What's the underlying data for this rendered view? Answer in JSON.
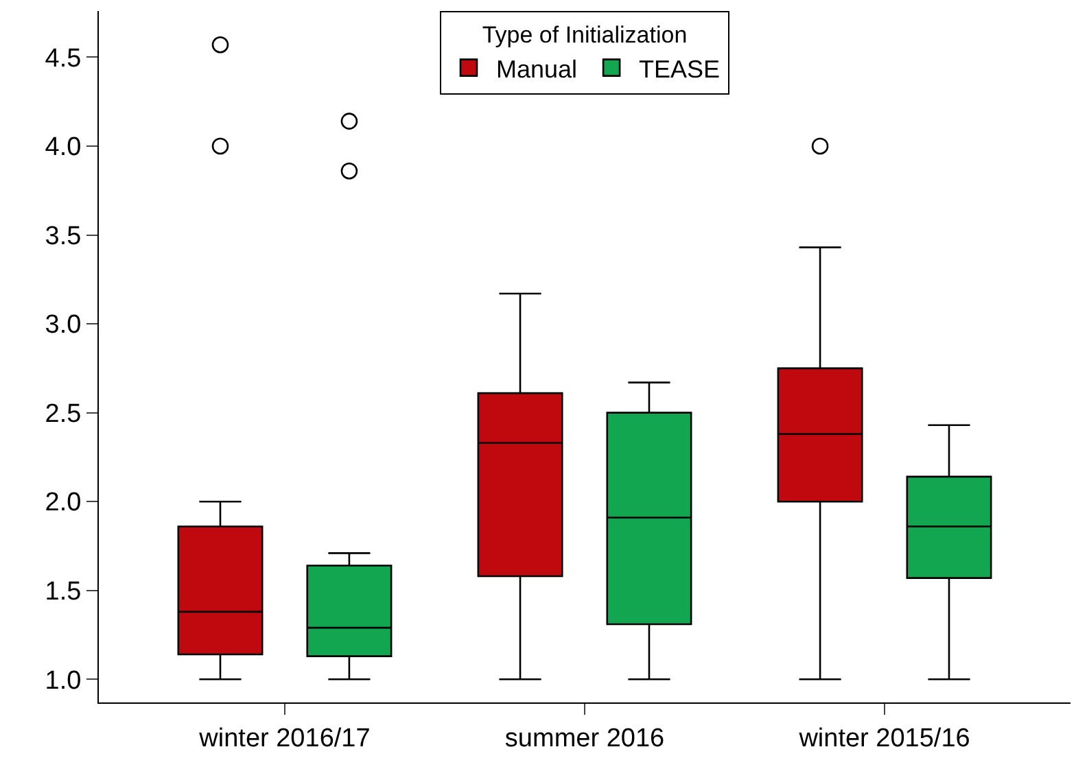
{
  "chart_data": {
    "type": "box",
    "categories": [
      "winter 2016/17",
      "summer 2016",
      "winter 2015/16"
    ],
    "series": [
      {
        "name": "Manual",
        "color": "#c0090f",
        "boxes": [
          {
            "low": 1.0,
            "q1": 1.14,
            "median": 1.38,
            "q3": 1.86,
            "high": 2.0,
            "outliers": [
              4.0,
              4.57
            ]
          },
          {
            "low": 1.0,
            "q1": 1.58,
            "median": 2.33,
            "q3": 2.61,
            "high": 3.17
          },
          {
            "low": 1.0,
            "q1": 2.0,
            "median": 2.38,
            "q3": 2.75,
            "high": 3.43,
            "outliers": [
              4.0
            ]
          }
        ]
      },
      {
        "name": "TEASE",
        "color": "#13a651",
        "boxes": [
          {
            "low": 1.0,
            "q1": 1.13,
            "median": 1.29,
            "q3": 1.64,
            "high": 1.71,
            "outliers": [
              3.86,
              4.14
            ]
          },
          {
            "low": 1.0,
            "q1": 1.31,
            "median": 1.91,
            "q3": 2.5,
            "high": 2.67
          },
          {
            "low": 1.0,
            "q1": 1.57,
            "median": 1.86,
            "q3": 2.14,
            "high": 2.43
          }
        ]
      }
    ],
    "legend_title": "Type of Initialization",
    "legend": "top",
    "ylim": [
      0.87,
      4.76
    ],
    "yticks": [
      {
        "value": 1,
        "label": "1.0"
      },
      {
        "value": 1.5,
        "label": "1.5"
      },
      {
        "value": 2,
        "label": "2.0"
      },
      {
        "value": 2.5,
        "label": "2.5"
      },
      {
        "value": 3,
        "label": "3.0"
      },
      {
        "value": 3.5,
        "label": "3.5"
      },
      {
        "value": 4,
        "label": "4.0"
      },
      {
        "value": 4.5,
        "label": "4.5"
      }
    ],
    "grid": false
  }
}
